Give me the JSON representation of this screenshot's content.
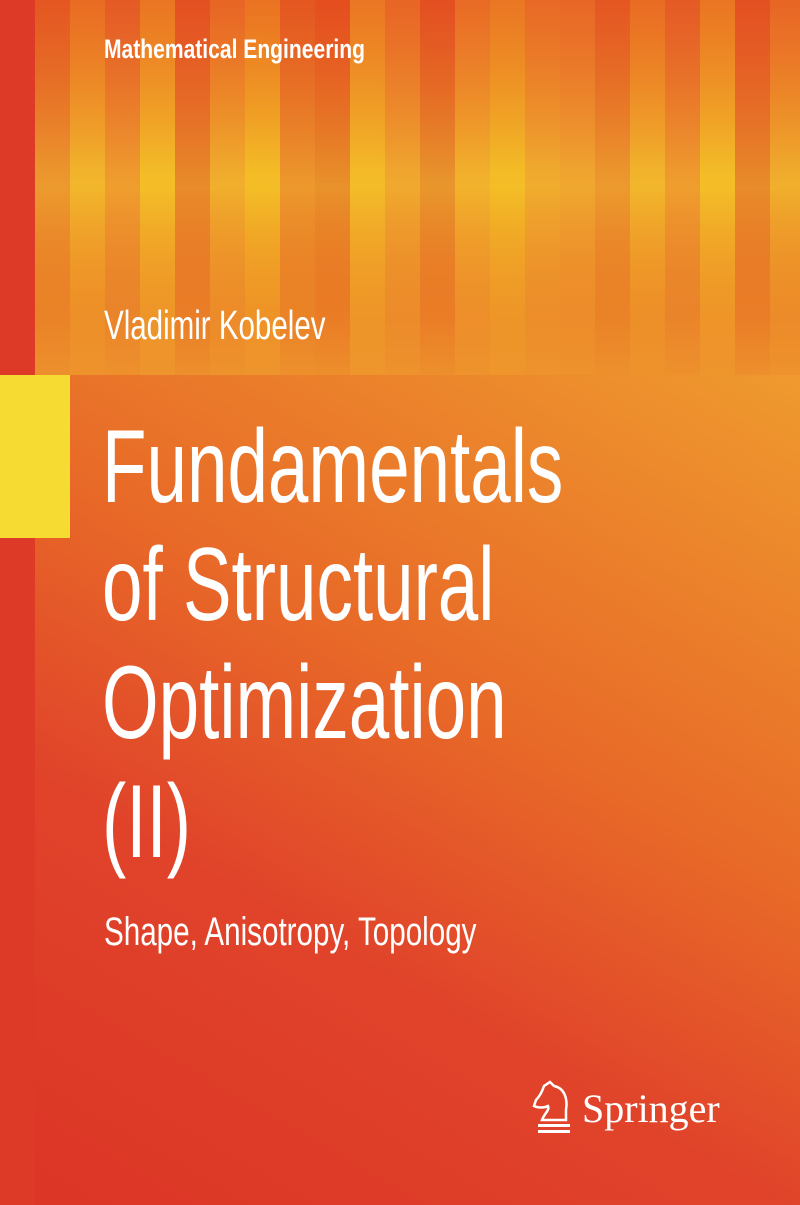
{
  "series": "Mathematical Engineering",
  "author": "Vladimir Kobelev",
  "title_lines": [
    "Fundamentals",
    "of Structural",
    "Optimization",
    "(II)"
  ],
  "subtitle": "Shape, Anisotropy, Topology",
  "publisher": "Springer",
  "colors": {
    "red": "#dd3a28",
    "orange": "#ec8a22",
    "yellow": "#f6dc32",
    "text": "#ffffff"
  }
}
